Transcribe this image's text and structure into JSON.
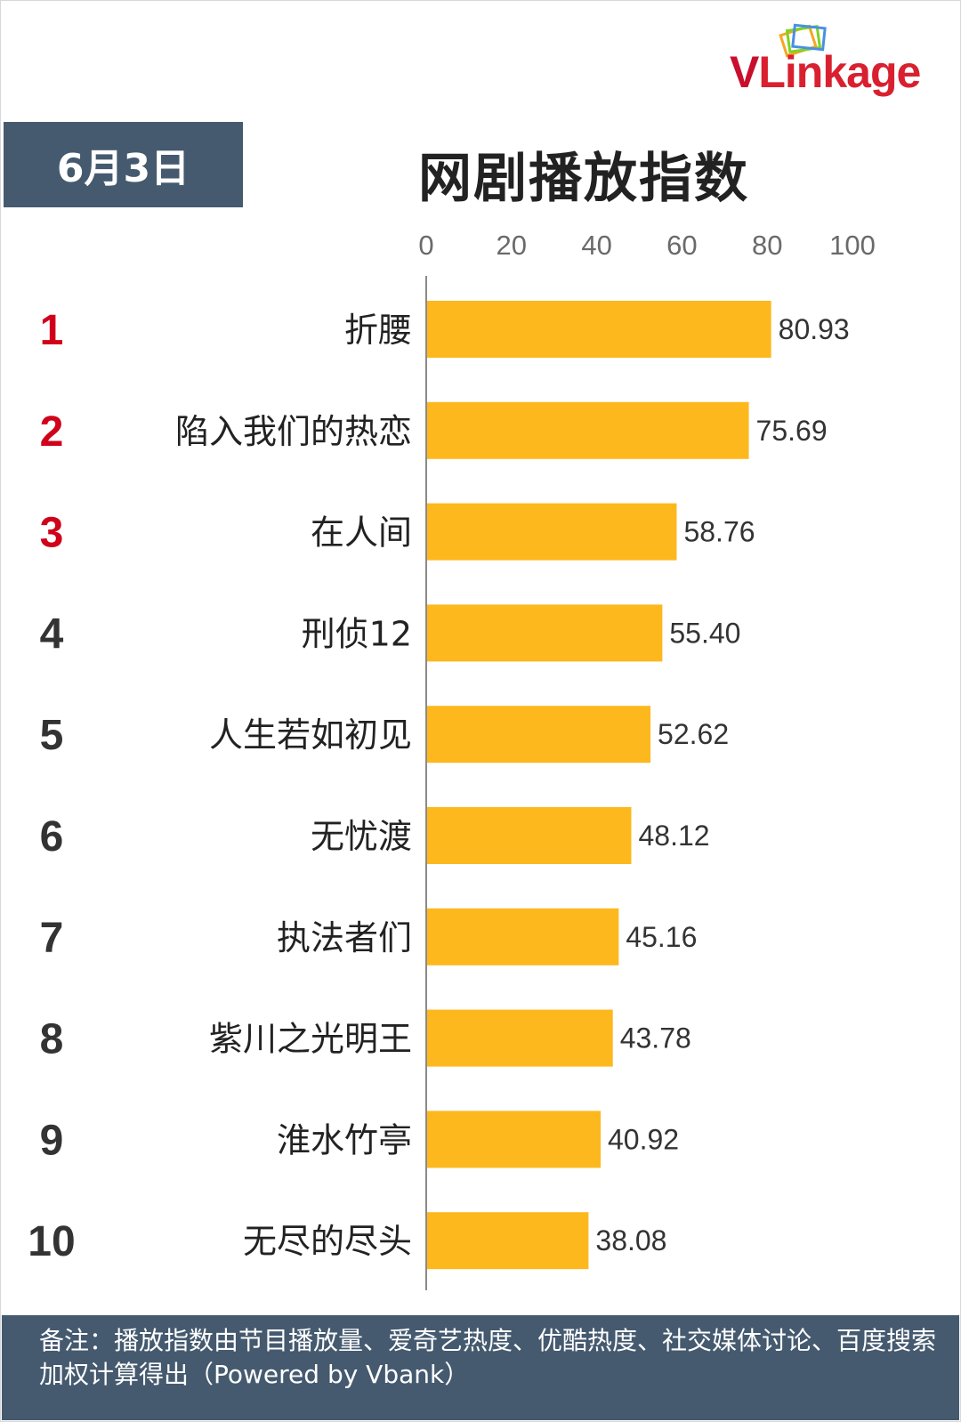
{
  "brand": {
    "logo_text_v": "V",
    "logo_text_rest": "Linkage"
  },
  "header": {
    "date": "6月3日",
    "title": "网剧播放指数"
  },
  "colors": {
    "bar": "#FDB81E",
    "rank_top3": "#D0021B",
    "rank_other": "#333333",
    "header_bg": "#455A6F"
  },
  "chart_data": {
    "type": "bar",
    "orientation": "horizontal",
    "title": "网剧播放指数",
    "x_ticks": [
      "0",
      "20",
      "40",
      "60",
      "80",
      "100"
    ],
    "xlim": [
      0,
      100
    ],
    "ranks": [
      "1",
      "2",
      "3",
      "4",
      "5",
      "6",
      "7",
      "8",
      "9",
      "10"
    ],
    "categories": [
      "折腰",
      "陷入我们的热恋",
      "在人间",
      "刑侦12",
      "人生若如初见",
      "无忧渡",
      "执法者们",
      "紫川之光明王",
      "淮水竹亭",
      "无尽的尽头"
    ],
    "values": [
      80.93,
      75.69,
      58.76,
      55.4,
      52.62,
      48.12,
      45.16,
      43.78,
      40.92,
      38.08
    ],
    "value_labels": [
      "80.93",
      "75.69",
      "58.76",
      "55.40",
      "52.62",
      "48.12",
      "45.16",
      "43.78",
      "40.92",
      "38.08"
    ],
    "grid": false
  },
  "footer": {
    "note": "备注：播放指数由节目播放量、爱奇艺热度、优酷热度、社交媒体讨论、百度搜索加权计算得出（Powered by Vbank）"
  }
}
